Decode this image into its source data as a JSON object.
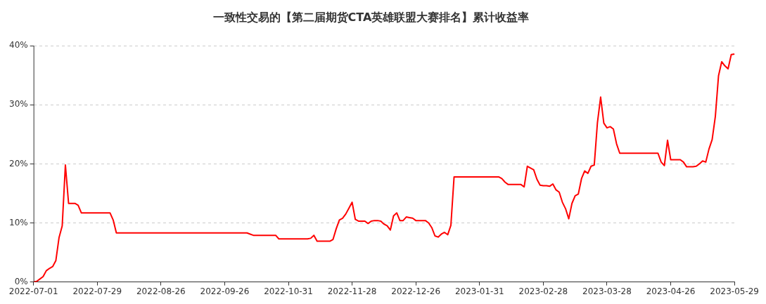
{
  "chart_data": {
    "type": "line",
    "title": "一致性交易的【第二届期货CTA英雄联盟大赛排名】累计收益率",
    "categories": [
      "2022-07-01",
      null,
      null,
      null,
      null,
      null,
      null,
      null,
      null,
      null,
      null,
      null,
      null,
      null,
      null,
      null,
      null,
      null,
      null,
      null,
      "2022-07-29",
      null,
      null,
      null,
      null,
      null,
      null,
      null,
      null,
      null,
      null,
      null,
      null,
      null,
      null,
      null,
      null,
      null,
      null,
      null,
      "2022-08-26",
      null,
      null,
      null,
      null,
      null,
      null,
      null,
      null,
      null,
      null,
      null,
      null,
      null,
      null,
      null,
      null,
      null,
      null,
      null,
      "2022-09-26",
      null,
      null,
      null,
      null,
      null,
      null,
      null,
      null,
      null,
      null,
      null,
      null,
      null,
      null,
      null,
      null,
      null,
      null,
      null,
      "2022-10-31",
      null,
      null,
      null,
      null,
      null,
      null,
      null,
      null,
      null,
      null,
      null,
      null,
      null,
      null,
      null,
      null,
      null,
      null,
      null,
      "2022-11-28",
      null,
      null,
      null,
      null,
      null,
      null,
      null,
      null,
      null,
      null,
      null,
      null,
      null,
      null,
      null,
      null,
      null,
      null,
      null,
      "2022-12-26",
      null,
      null,
      null,
      null,
      null,
      null,
      null,
      null,
      null,
      null,
      null,
      null,
      null,
      null,
      null,
      null,
      null,
      null,
      null,
      "2023-01-31",
      null,
      null,
      null,
      null,
      null,
      null,
      null,
      null,
      null,
      null,
      null,
      null,
      null,
      null,
      null,
      null,
      null,
      null,
      null,
      "2023-02-28",
      null,
      null,
      null,
      null,
      null,
      null,
      null,
      null,
      null,
      null,
      null,
      null,
      null,
      null,
      null,
      null,
      null,
      null,
      null,
      "2023-03-28",
      null,
      null,
      null,
      null,
      null,
      null,
      null,
      null,
      null,
      null,
      null,
      null,
      null,
      null,
      null,
      null,
      null,
      null,
      null,
      "2023-04-26",
      null,
      null,
      null,
      null,
      null,
      null,
      null,
      null,
      null,
      null,
      null,
      null,
      null,
      null,
      null,
      null,
      null,
      null,
      null,
      "2023-05-29"
    ],
    "series": [
      {
        "color": "#ff0000",
        "values": [
          0,
          0.1,
          0.5,
          0.9,
          1.9,
          2.3,
          2.6,
          3.6,
          7.5,
          9.5,
          19.8,
          13.3,
          13.3,
          13.3,
          13.0,
          11.7,
          11.7,
          11.7,
          11.7,
          11.7,
          11.7,
          11.7,
          11.7,
          11.7,
          11.7,
          10.5,
          8.3,
          8.3,
          8.3,
          8.3,
          8.3,
          8.3,
          8.3,
          8.3,
          8.3,
          8.3,
          8.3,
          8.3,
          8.3,
          8.3,
          8.3,
          8.3,
          8.3,
          8.3,
          8.3,
          8.3,
          8.3,
          8.3,
          8.3,
          8.3,
          8.3,
          8.3,
          8.3,
          8.3,
          8.3,
          8.3,
          8.3,
          8.3,
          8.3,
          8.3,
          8.3,
          8.3,
          8.3,
          8.3,
          8.3,
          8.3,
          8.3,
          8.3,
          8.1,
          7.9,
          7.9,
          7.9,
          7.9,
          7.9,
          7.9,
          7.9,
          7.9,
          7.3,
          7.3,
          7.3,
          7.3,
          7.3,
          7.3,
          7.3,
          7.3,
          7.3,
          7.3,
          7.4,
          7.9,
          6.9,
          6.9,
          6.9,
          6.9,
          6.9,
          7.2,
          9.0,
          10.5,
          10.8,
          11.5,
          12.5,
          13.5,
          10.6,
          10.3,
          10.3,
          10.3,
          9.9,
          10.3,
          10.4,
          10.4,
          10.3,
          9.8,
          9.5,
          8.8,
          11.2,
          11.7,
          10.4,
          10.4,
          11.0,
          10.9,
          10.8,
          10.4,
          10.4,
          10.4,
          10.4,
          10.0,
          9.2,
          7.8,
          7.6,
          8.1,
          8.4,
          8.0,
          9.6,
          17.8,
          17.8,
          17.8,
          17.8,
          17.8,
          17.8,
          17.8,
          17.8,
          17.8,
          17.8,
          17.8,
          17.8,
          17.8,
          17.8,
          17.8,
          17.5,
          16.9,
          16.5,
          16.5,
          16.5,
          16.5,
          16.5,
          16.1,
          19.6,
          19.3,
          19.0,
          17.4,
          16.4,
          16.3,
          16.3,
          16.2,
          16.6,
          15.6,
          15.2,
          13.5,
          12.4,
          10.7,
          13.3,
          14.6,
          14.9,
          17.5,
          18.8,
          18.4,
          19.6,
          19.8,
          27.0,
          31.3,
          26.9,
          26.1,
          26.3,
          25.9,
          23.4,
          21.8,
          21.8,
          21.8,
          21.8,
          21.8,
          21.8,
          21.8,
          21.8,
          21.8,
          21.8,
          21.8,
          21.8,
          21.8,
          20.3,
          19.7,
          24.0,
          20.7,
          20.7,
          20.7,
          20.7,
          20.3,
          19.5,
          19.5,
          19.5,
          19.6,
          20.0,
          20.5,
          20.3,
          22.5,
          24.1,
          28.0,
          34.9,
          37.3,
          36.6,
          36.1,
          38.5,
          38.6
        ]
      }
    ],
    "ylim": [
      0,
      40
    ],
    "yticks": [
      {
        "value": 0,
        "label": "0%"
      },
      {
        "value": 10,
        "label": "10%"
      },
      {
        "value": 20,
        "label": "20%"
      },
      {
        "value": 30,
        "label": "30%"
      },
      {
        "value": 40,
        "label": "40%"
      }
    ],
    "grid": "y",
    "legend": false,
    "line_style": "solid"
  }
}
